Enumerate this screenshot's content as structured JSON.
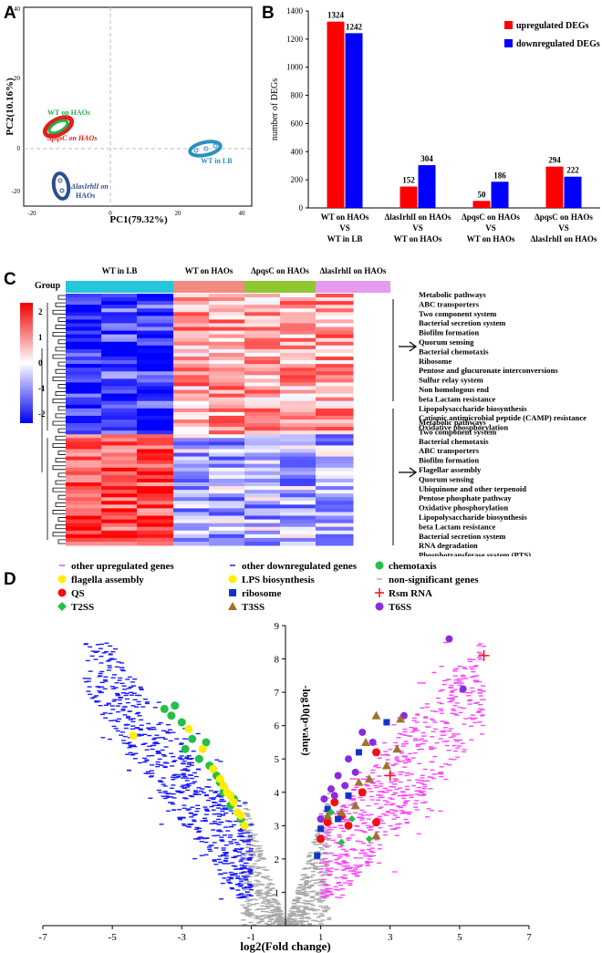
{
  "panels": {
    "a": "A",
    "b": "B",
    "c": "C",
    "d": "D"
  },
  "pca": {
    "xlabel": "PC1(79.32%)",
    "ylabel": "PC2(10.16%)",
    "x_ticks": [
      "-20",
      "0",
      "20",
      "40"
    ],
    "y_ticks": [
      "40",
      "20",
      "0",
      "-20"
    ],
    "groups": [
      {
        "label": "WT on HAOs",
        "color": "#22b14c"
      },
      {
        "label": "ΔpqsC on HAOs",
        "color": "#e02020"
      },
      {
        "label": "WT in LB",
        "color": "#2a8fc0"
      },
      {
        "label_1": "ΔlasIrhlI on",
        "label_2": "HAOs",
        "color": "#2b4f8f"
      }
    ]
  },
  "chart_data": [
    {
      "type": "bar",
      "ylabel": "number of DEGs",
      "ylim": [
        0,
        1400
      ],
      "y_ticks": [
        "0",
        "200",
        "400",
        "600",
        "800",
        "1000",
        "1200",
        "1400"
      ],
      "categories": [
        {
          "l1": "WT on HAOs",
          "l2": "VS",
          "l3": "WT in LB"
        },
        {
          "l1": "ΔlasIrhlI on HAOs",
          "l2": "VS",
          "l3": "WT on HAOs"
        },
        {
          "l1": "ΔpqsC on HAOs",
          "l2": "VS",
          "l3": "WT on HAOs"
        },
        {
          "l1": "ΔpqsC on HAOs",
          "l2": "VS",
          "l3": "ΔlasIrhlI on HAOs"
        }
      ],
      "series": [
        {
          "name": "upregulated DEGs",
          "color": "#ff0000",
          "values": [
            1324,
            152,
            50,
            294
          ],
          "labels": [
            "1324",
            "152",
            "50",
            "294"
          ]
        },
        {
          "name": "downregulated DEGs",
          "color": "#0000ff",
          "values": [
            1242,
            304,
            186,
            222
          ],
          "labels": [
            "1242",
            "304",
            "186",
            "222"
          ]
        }
      ]
    },
    {
      "type": "scatter",
      "xlabel": "log2(Fold change)",
      "ylabel": "-log10(p-value)",
      "xlim": [
        -7,
        7
      ],
      "ylim": [
        0,
        9
      ],
      "x_ticks": [
        "-7",
        "-5",
        "-3",
        "-1",
        "1",
        "3",
        "5",
        "7"
      ],
      "y_ticks": [
        "1",
        "2",
        "3",
        "4",
        "5",
        "6",
        "7",
        "8",
        "9"
      ],
      "legend": [
        {
          "label": "other upregulated genes",
          "color": "#ff44ff",
          "marker": "dash"
        },
        {
          "label": "other downregulated genes",
          "color": "#1a1aff",
          "marker": "dash"
        },
        {
          "label": "chemotaxis",
          "color": "#22c046",
          "marker": "circle"
        },
        {
          "label": "flagella assembly",
          "color": "#ffee00",
          "marker": "circle"
        },
        {
          "label": "LPS biosynthesis",
          "color": "#ffee00",
          "marker": "circle"
        },
        {
          "label": "non-significant genes",
          "color": "#aaaaaa",
          "marker": "dash"
        },
        {
          "label": "QS",
          "color": "#ee1111",
          "marker": "circle"
        },
        {
          "label": "ribosome",
          "color": "#1133cc",
          "marker": "square"
        },
        {
          "label": "Rsm RNA",
          "color": "#ee1111",
          "marker": "plus"
        },
        {
          "label": "T2SS",
          "color": "#22c046",
          "marker": "diamond"
        },
        {
          "label": "T3SS",
          "color": "#a0722a",
          "marker": "triangle"
        },
        {
          "label": "T6SS",
          "color": "#8a2be2",
          "marker": "circle"
        }
      ],
      "highlighted_points": {
        "chemotaxis": [
          [
            -3.5,
            6.5
          ],
          [
            -3.3,
            6.3
          ],
          [
            -3.0,
            6.1
          ],
          [
            -2.7,
            5.6
          ],
          [
            -2.9,
            5.3
          ],
          [
            -2.5,
            5.0
          ],
          [
            -2.2,
            4.8
          ],
          [
            -2.0,
            4.5
          ],
          [
            -1.8,
            4.0
          ],
          [
            -1.6,
            3.6
          ],
          [
            -1.3,
            3.2
          ],
          [
            -1.9,
            4.3
          ],
          [
            -2.3,
            5.5
          ],
          [
            -3.2,
            6.6
          ],
          [
            -1.5,
            3.8
          ]
        ],
        "flagella": [
          [
            -4.4,
            5.7
          ],
          [
            -2.8,
            5.9
          ],
          [
            -2.4,
            5.3
          ],
          [
            -2.1,
            4.7
          ],
          [
            -1.9,
            4.4
          ],
          [
            -1.7,
            4.0
          ],
          [
            -1.5,
            3.7
          ],
          [
            -1.4,
            3.4
          ],
          [
            -1.2,
            3.0
          ],
          [
            -1.3,
            3.3
          ],
          [
            -1.6,
            3.9
          ],
          [
            -1.8,
            4.2
          ]
        ],
        "qs": [
          [
            2.6,
            5.2
          ],
          [
            1.4,
            3.7
          ],
          [
            1.2,
            3.1
          ],
          [
            2.2,
            4.0
          ],
          [
            1.6,
            3.3
          ],
          [
            1.0,
            2.6
          ],
          [
            1.8,
            3.0
          ],
          [
            2.6,
            3.1
          ]
        ],
        "ribosome": [
          [
            2.9,
            6.1
          ],
          [
            2.1,
            5.2
          ],
          [
            1.8,
            3.9
          ],
          [
            1.2,
            3.5
          ],
          [
            1.0,
            2.9
          ],
          [
            1.5,
            3.2
          ],
          [
            0.9,
            2.1
          ]
        ],
        "rsm": [
          [
            5.7,
            8.1
          ],
          [
            3.0,
            4.5
          ]
        ],
        "t2ss": [
          [
            1.3,
            3.4
          ],
          [
            2.4,
            2.6
          ],
          [
            1.9,
            3.2
          ],
          [
            1.6,
            2.5
          ]
        ],
        "t3ss": [
          [
            2.6,
            6.3
          ],
          [
            2.3,
            5.5
          ],
          [
            3.3,
            6.2
          ],
          [
            2.4,
            4.4
          ],
          [
            2.0,
            3.6
          ],
          [
            1.6,
            3.4
          ],
          [
            2.1,
            4.3
          ],
          [
            1.2,
            3.3
          ],
          [
            2.9,
            4.8
          ],
          [
            3.2,
            5.3
          ],
          [
            2.6,
            2.7
          ]
        ],
        "t6ss": [
          [
            4.7,
            8.6
          ],
          [
            5.1,
            7.1
          ],
          [
            3.4,
            6.3
          ],
          [
            2.2,
            5.8
          ],
          [
            1.8,
            5.0
          ],
          [
            1.5,
            4.5
          ],
          [
            1.3,
            4.1
          ],
          [
            1.1,
            3.8
          ],
          [
            1.0,
            3.2
          ],
          [
            1.4,
            3.9
          ],
          [
            2.0,
            4.6
          ],
          [
            1.7,
            4.2
          ],
          [
            2.5,
            5.5
          ]
        ]
      }
    }
  ],
  "heatmap": {
    "group_label": "Group",
    "column_groups": [
      {
        "label": "WT in LB",
        "color": "#26c6da"
      },
      {
        "label": "WT on HAOs",
        "color": "#f38b82"
      },
      {
        "label": "ΔpqsC on HAOs",
        "color": "#8fc631"
      },
      {
        "label": "ΔlasIrhlI on HAOs",
        "color": "#e59bf0"
      }
    ],
    "scale_ticks": [
      "2",
      "1",
      "0",
      "-1",
      "-2"
    ],
    "upper_pathways": [
      "Metabolic pathways",
      "ABC transporters",
      "Two component system",
      "Bacterial secretion system",
      "Biofilm formation",
      "Quorum sensing",
      "Bacterial chemotaxis",
      "Ribosome",
      "Pentose and glucuronate interconversions",
      "Sulfur relay system",
      "Non homologous end",
      "beta Lactam resistance",
      "Lipopolysaccharide biosynthesis",
      "Cationic antimicrobial peptide (CAMP) resistance",
      "Oxidative phosphorylation"
    ],
    "lower_pathways": [
      "Metabolic pathways",
      "Two component system",
      "Bacterial chemotaxis",
      "ABC transporters",
      "Biofilm formation",
      "Flagellar assembly",
      "Quorum sensing",
      "Ubiquinone and other terpenoid",
      "Pentose phosphate pathway",
      "Oxidative phosphorylation",
      "Lipopolysaccharide biosynthesis",
      "beta Lactam resistance",
      "Bacterial secretion system",
      "RNA degradation",
      "Phosphotransferase system (PTS)"
    ]
  }
}
